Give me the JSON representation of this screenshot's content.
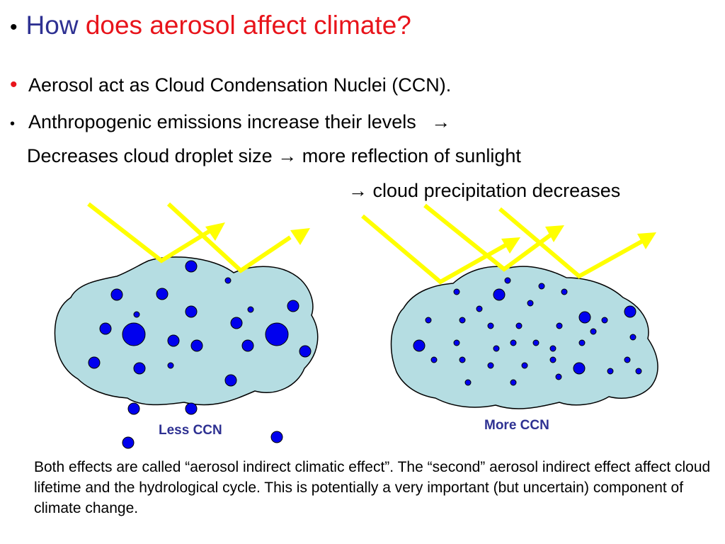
{
  "title": {
    "part1": "How",
    "part2": "does aerosol affect climate?",
    "part1_color": "#2e3192",
    "part2_color": "#e8141b"
  },
  "bullets": [
    {
      "text": "Aerosol act as Cloud Condensation Nuclei (CCN)."
    },
    {
      "text": "Anthropogenic emissions increase their levels",
      "arrow": "→"
    },
    {
      "text_a": "Decreases cloud droplet size",
      "arrow": "→",
      "text_b": "more reflection of sunlight"
    },
    {
      "arrow": "→",
      "text": "cloud precipitation decreases"
    }
  ],
  "labels": {
    "less": "Less CCN",
    "more": "More CCN"
  },
  "footnote": "Both effects are called “aerosol indirect climatic effect”. The “second” aerosol indirect effect affect cloud lifetime and the hydrological cycle. This is potentially a very important (but uncertain) component of climate change.",
  "colors": {
    "cloud_fill": "#b5dde2",
    "droplet": "#0000ee",
    "sunlight": "#ffff00"
  }
}
